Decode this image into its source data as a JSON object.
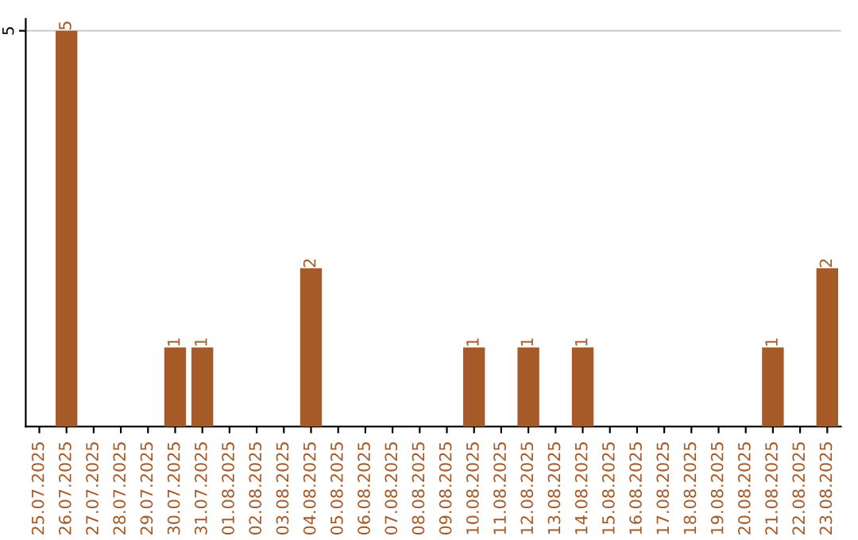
{
  "chart_data": {
    "type": "bar",
    "categories": [
      "25.07.2025",
      "26.07.2025",
      "27.07.2025",
      "28.07.2025",
      "29.07.2025",
      "30.07.2025",
      "31.07.2025",
      "01.08.2025",
      "02.08.2025",
      "03.08.2025",
      "04.08.2025",
      "05.08.2025",
      "06.08.2025",
      "07.08.2025",
      "08.08.2025",
      "09.08.2025",
      "10.08.2025",
      "11.08.2025",
      "12.08.2025",
      "13.08.2025",
      "14.08.2025",
      "15.08.2025",
      "16.08.2025",
      "17.08.2025",
      "18.08.2025",
      "19.08.2025",
      "20.08.2025",
      "21.08.2025",
      "22.08.2025",
      "23.08.2025"
    ],
    "values": [
      0,
      5,
      0,
      0,
      0,
      1,
      1,
      0,
      0,
      0,
      2,
      0,
      0,
      0,
      0,
      0,
      1,
      0,
      1,
      0,
      1,
      0,
      0,
      0,
      0,
      0,
      0,
      1,
      0,
      2
    ],
    "color": "#a65a28",
    "value_labels": [
      null,
      "5",
      null,
      null,
      null,
      "1",
      "1",
      null,
      null,
      null,
      "2",
      null,
      null,
      null,
      null,
      null,
      "1",
      null,
      "1",
      null,
      "1",
      null,
      null,
      null,
      null,
      null,
      null,
      "1",
      null,
      "2"
    ],
    "ylim": [
      0,
      5.15
    ],
    "yticks": [
      5
    ],
    "grid": "y",
    "legend": false
  }
}
